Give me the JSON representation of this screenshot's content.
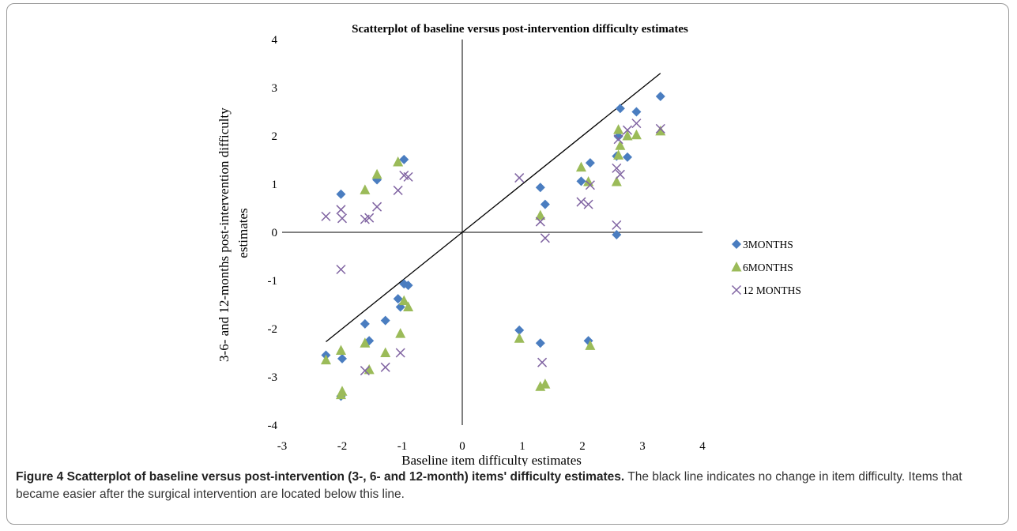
{
  "chart_data": {
    "type": "scatter",
    "title": "Scatterplot of baseline versus post-intervention difficulty estimates",
    "xlabel": "Baseline item difficulty estimates",
    "ylabel": "3-6- and 12-months post-intervention difficulty estimates",
    "xlim": [
      -3,
      4
    ],
    "ylim": [
      -4,
      4
    ],
    "x_ticks": [
      "-3",
      "-2",
      "-1",
      "0",
      "1",
      "2",
      "3",
      "4"
    ],
    "y_ticks": [
      "4",
      "3",
      "2",
      "1",
      "0",
      "-1",
      "-2",
      "-3",
      "-4"
    ],
    "grid": false,
    "legend_position": "right",
    "reference_line": {
      "x": [
        -2.27,
        3.3
      ],
      "y": [
        -2.27,
        3.3
      ],
      "color": "#000000"
    },
    "series": [
      {
        "name": "3MONTHS",
        "marker": "diamond",
        "color": "#4a7dc0",
        "points": [
          [
            -2.27,
            -2.55
          ],
          [
            -2.02,
            0.79
          ],
          [
            -2.0,
            -2.62
          ],
          [
            -2.02,
            -3.4
          ],
          [
            -1.62,
            -1.9
          ],
          [
            -1.55,
            -2.25
          ],
          [
            -1.42,
            1.09
          ],
          [
            -1.28,
            -1.83
          ],
          [
            -1.07,
            -1.38
          ],
          [
            -1.03,
            -1.55
          ],
          [
            -0.97,
            1.51
          ],
          [
            -0.97,
            -1.07
          ],
          [
            -0.9,
            -1.1
          ],
          [
            0.95,
            -2.03
          ],
          [
            1.3,
            0.93
          ],
          [
            1.3,
            -2.3
          ],
          [
            1.38,
            0.58
          ],
          [
            1.98,
            1.06
          ],
          [
            2.1,
            -2.25
          ],
          [
            2.13,
            1.44
          ],
          [
            2.57,
            1.58
          ],
          [
            2.57,
            -0.05
          ],
          [
            2.6,
            1.99
          ],
          [
            2.63,
            2.57
          ],
          [
            2.75,
            1.56
          ],
          [
            2.9,
            2.5
          ],
          [
            3.3,
            2.82
          ]
        ]
      },
      {
        "name": "6MONTHS",
        "marker": "triangle",
        "color": "#9bbb59",
        "points": [
          [
            -2.27,
            -2.65
          ],
          [
            -2.02,
            -2.45
          ],
          [
            -2.0,
            -3.3
          ],
          [
            -2.02,
            -3.37
          ],
          [
            -1.62,
            0.88
          ],
          [
            -1.62,
            -2.3
          ],
          [
            -1.55,
            -2.85
          ],
          [
            -1.42,
            1.2
          ],
          [
            -1.28,
            -2.5
          ],
          [
            -1.07,
            1.46
          ],
          [
            -1.03,
            -2.1
          ],
          [
            -0.97,
            -1.42
          ],
          [
            -0.9,
            -1.55
          ],
          [
            0.95,
            -2.2
          ],
          [
            1.3,
            -3.2
          ],
          [
            1.3,
            0.35
          ],
          [
            1.38,
            -3.15
          ],
          [
            1.98,
            1.35
          ],
          [
            2.1,
            1.05
          ],
          [
            2.13,
            -2.35
          ],
          [
            2.57,
            1.05
          ],
          [
            2.6,
            1.6
          ],
          [
            2.6,
            2.13
          ],
          [
            2.63,
            1.8
          ],
          [
            2.75,
            2.0
          ],
          [
            2.9,
            2.02
          ],
          [
            3.3,
            2.1
          ]
        ]
      },
      {
        "name": "12 MONTHS",
        "marker": "x",
        "color": "#8064a2",
        "points": [
          [
            -2.27,
            0.33
          ],
          [
            -2.02,
            0.47
          ],
          [
            -2.0,
            0.29
          ],
          [
            -2.02,
            -0.77
          ],
          [
            -1.62,
            0.27
          ],
          [
            -1.55,
            0.3
          ],
          [
            -1.62,
            -2.87
          ],
          [
            -1.42,
            0.53
          ],
          [
            -1.28,
            -2.8
          ],
          [
            -1.07,
            0.87
          ],
          [
            -1.03,
            -2.5
          ],
          [
            -0.97,
            1.18
          ],
          [
            -0.9,
            1.15
          ],
          [
            0.95,
            1.13
          ],
          [
            1.3,
            0.22
          ],
          [
            1.33,
            -2.7
          ],
          [
            1.38,
            -0.12
          ],
          [
            1.98,
            0.63
          ],
          [
            2.1,
            0.58
          ],
          [
            2.13,
            0.98
          ],
          [
            2.57,
            0.15
          ],
          [
            2.57,
            1.33
          ],
          [
            2.6,
            1.93
          ],
          [
            2.63,
            1.2
          ],
          [
            2.75,
            2.12
          ],
          [
            2.9,
            2.26
          ],
          [
            3.3,
            2.15
          ]
        ]
      }
    ]
  },
  "caption": {
    "label": "Figure 4 Scatterplot of baseline versus post-intervention (3-, 6- and 12-month) items' difficulty estimates.",
    "text": " The black line indicates no change in item difficulty. Items that became easier after the surgical intervention are located below this line."
  }
}
